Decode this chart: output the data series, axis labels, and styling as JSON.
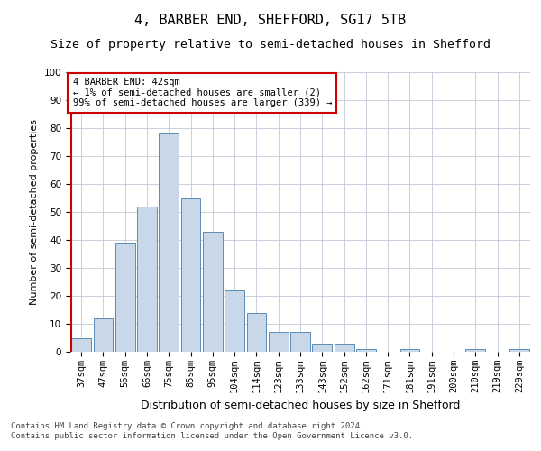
{
  "title": "4, BARBER END, SHEFFORD, SG17 5TB",
  "subtitle": "Size of property relative to semi-detached houses in Shefford",
  "xlabel": "Distribution of semi-detached houses by size in Shefford",
  "ylabel": "Number of semi-detached properties",
  "categories": [
    "37sqm",
    "47sqm",
    "56sqm",
    "66sqm",
    "75sqm",
    "85sqm",
    "95sqm",
    "104sqm",
    "114sqm",
    "123sqm",
    "133sqm",
    "143sqm",
    "152sqm",
    "162sqm",
    "171sqm",
    "181sqm",
    "191sqm",
    "200sqm",
    "210sqm",
    "219sqm",
    "229sqm"
  ],
  "values": [
    5,
    12,
    39,
    52,
    78,
    55,
    43,
    22,
    14,
    7,
    7,
    3,
    3,
    1,
    0,
    1,
    0,
    0,
    1,
    0,
    1
  ],
  "bar_color": "#c8d8e8",
  "bar_edge_color": "#5b8db8",
  "background_color": "#ffffff",
  "grid_color": "#c0c8d8",
  "ylim": [
    0,
    100
  ],
  "yticks": [
    0,
    10,
    20,
    30,
    40,
    50,
    60,
    70,
    80,
    90,
    100
  ],
  "annotation_text": "4 BARBER END: 42sqm\n← 1% of semi-detached houses are smaller (2)\n99% of semi-detached houses are larger (339) →",
  "annotation_box_color": "#ffffff",
  "annotation_box_edge": "#cc0000",
  "red_line_color": "#cc0000",
  "footnote_line1": "Contains HM Land Registry data © Crown copyright and database right 2024.",
  "footnote_line2": "Contains public sector information licensed under the Open Government Licence v3.0.",
  "title_fontsize": 11,
  "subtitle_fontsize": 9.5,
  "xlabel_fontsize": 9,
  "ylabel_fontsize": 8,
  "tick_fontsize": 7.5,
  "annotation_fontsize": 7.5,
  "footnote_fontsize": 6.5
}
